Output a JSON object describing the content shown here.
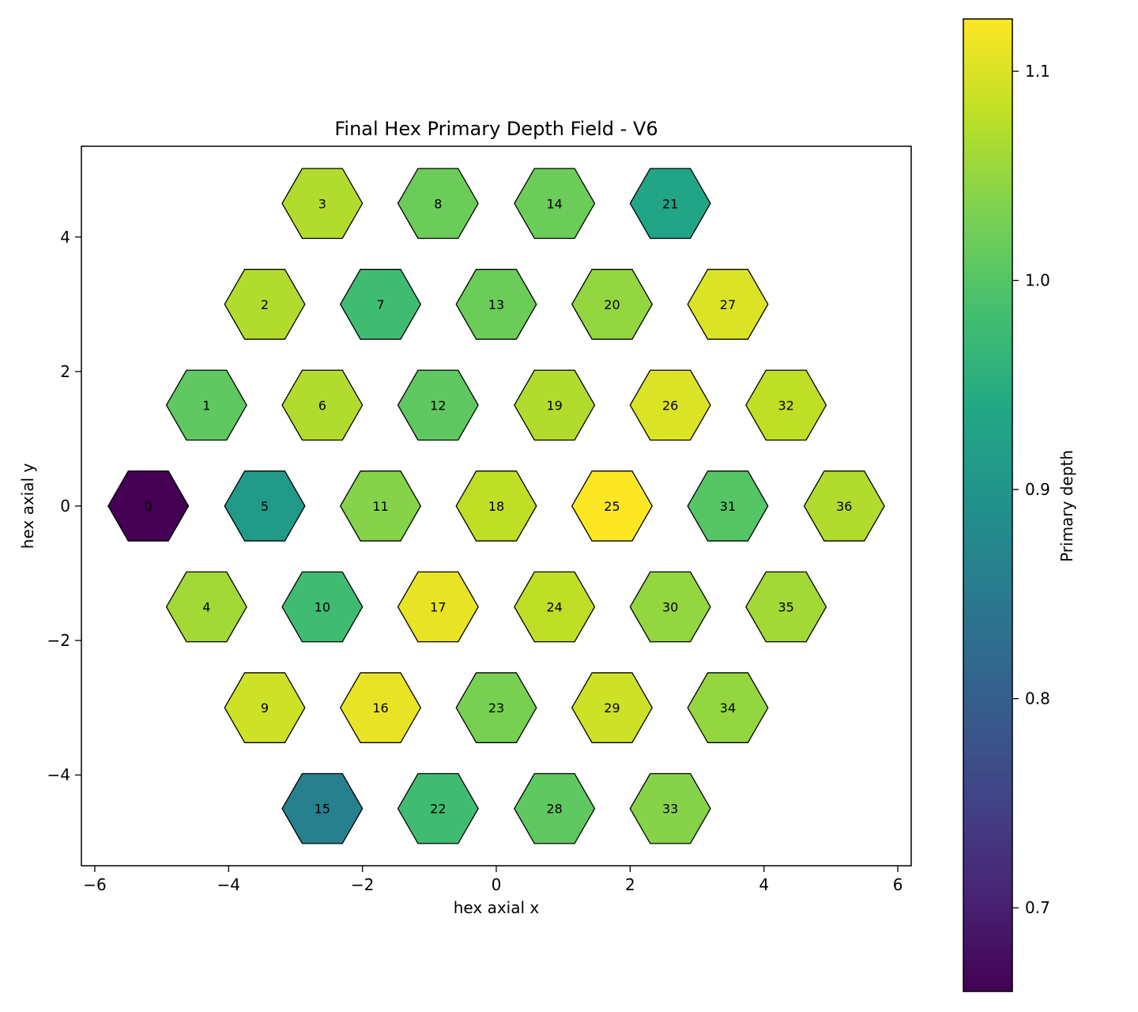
{
  "chart_data": {
    "type": "heatmap",
    "title": "Final Hex Primary Depth Field - V6",
    "xlabel": "hex axial x",
    "ylabel": "hex axial y",
    "xlim": [
      -6.2,
      6.2
    ],
    "ylim": [
      -5.35,
      5.35
    ],
    "xticks": [
      -6,
      -4,
      -2,
      0,
      2,
      4,
      6
    ],
    "yticks": [
      -4,
      -2,
      0,
      2,
      4
    ],
    "grid": false,
    "colormap": "viridis",
    "colorbar": {
      "label": "Primary depth",
      "range": [
        0.66,
        1.125
      ],
      "ticks": [
        0.7,
        0.8,
        0.9,
        1.0,
        1.1
      ]
    },
    "cells": [
      {
        "id": "0",
        "x": -5.2,
        "y": 0.0,
        "value": 0.66
      },
      {
        "id": "1",
        "x": -4.33,
        "y": 1.5,
        "value": 1.01
      },
      {
        "id": "2",
        "x": -3.46,
        "y": 3.0,
        "value": 1.07
      },
      {
        "id": "3",
        "x": -2.6,
        "y": 4.5,
        "value": 1.07
      },
      {
        "id": "4",
        "x": -4.33,
        "y": -1.5,
        "value": 1.06
      },
      {
        "id": "5",
        "x": -3.46,
        "y": 0.0,
        "value": 0.91
      },
      {
        "id": "6",
        "x": -2.6,
        "y": 1.5,
        "value": 1.07
      },
      {
        "id": "7",
        "x": -1.73,
        "y": 3.0,
        "value": 0.98
      },
      {
        "id": "8",
        "x": -0.87,
        "y": 4.5,
        "value": 1.02
      },
      {
        "id": "9",
        "x": -3.46,
        "y": -3.0,
        "value": 1.09
      },
      {
        "id": "10",
        "x": -2.6,
        "y": -1.5,
        "value": 0.98
      },
      {
        "id": "11",
        "x": -1.73,
        "y": 0.0,
        "value": 1.04
      },
      {
        "id": "12",
        "x": -0.87,
        "y": 1.5,
        "value": 1.01
      },
      {
        "id": "13",
        "x": 0.0,
        "y": 3.0,
        "value": 1.02
      },
      {
        "id": "14",
        "x": 0.87,
        "y": 4.5,
        "value": 1.02
      },
      {
        "id": "15",
        "x": -2.6,
        "y": -4.5,
        "value": 0.86
      },
      {
        "id": "16",
        "x": -1.73,
        "y": -3.0,
        "value": 1.11
      },
      {
        "id": "17",
        "x": -0.87,
        "y": -1.5,
        "value": 1.11
      },
      {
        "id": "18",
        "x": 0.0,
        "y": 0.0,
        "value": 1.08
      },
      {
        "id": "19",
        "x": 0.87,
        "y": 1.5,
        "value": 1.07
      },
      {
        "id": "20",
        "x": 1.73,
        "y": 3.0,
        "value": 1.05
      },
      {
        "id": "21",
        "x": 2.6,
        "y": 4.5,
        "value": 0.93
      },
      {
        "id": "22",
        "x": -0.87,
        "y": -4.5,
        "value": 0.98
      },
      {
        "id": "23",
        "x": 0.0,
        "y": -3.0,
        "value": 1.03
      },
      {
        "id": "24",
        "x": 0.87,
        "y": -1.5,
        "value": 1.08
      },
      {
        "id": "25",
        "x": 1.73,
        "y": 0.0,
        "value": 1.125
      },
      {
        "id": "26",
        "x": 2.6,
        "y": 1.5,
        "value": 1.1
      },
      {
        "id": "27",
        "x": 3.46,
        "y": 3.0,
        "value": 1.1
      },
      {
        "id": "28",
        "x": 0.87,
        "y": -4.5,
        "value": 1.01
      },
      {
        "id": "29",
        "x": 1.73,
        "y": -3.0,
        "value": 1.09
      },
      {
        "id": "30",
        "x": 2.6,
        "y": -1.5,
        "value": 1.05
      },
      {
        "id": "31",
        "x": 3.46,
        "y": 0.0,
        "value": 1.0
      },
      {
        "id": "32",
        "x": 4.33,
        "y": 1.5,
        "value": 1.08
      },
      {
        "id": "33",
        "x": 2.6,
        "y": -4.5,
        "value": 1.04
      },
      {
        "id": "34",
        "x": 3.46,
        "y": -3.0,
        "value": 1.05
      },
      {
        "id": "35",
        "x": 4.33,
        "y": -1.5,
        "value": 1.06
      },
      {
        "id": "36",
        "x": 5.2,
        "y": 0.0,
        "value": 1.07
      }
    ]
  }
}
